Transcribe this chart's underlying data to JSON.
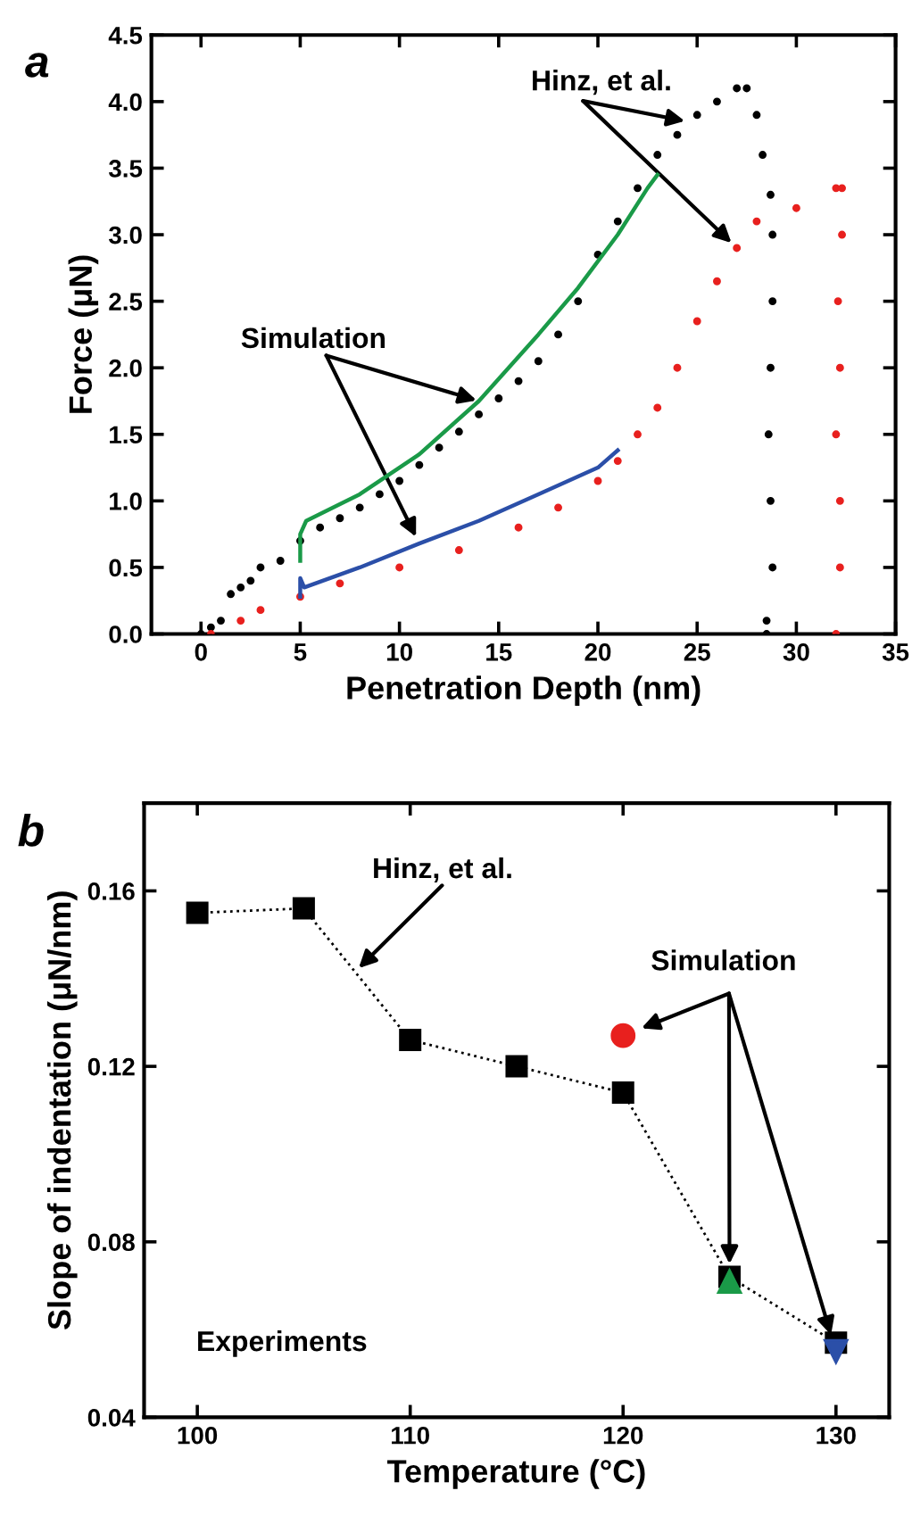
{
  "chart_data": [
    {
      "type": "line",
      "title": "a",
      "xlabel": "Penetration Depth (nm)",
      "ylabel": "Force (μN)",
      "xlim": [
        -2.5,
        35
      ],
      "ylim": [
        0,
        4.5
      ],
      "xticks": [
        0,
        5,
        10,
        15,
        20,
        25,
        30,
        35
      ],
      "yticks": [
        {
          "value": 0,
          "label": "0.0"
        },
        {
          "value": 0.5,
          "label": "0.5"
        },
        {
          "value": 1,
          "label": "1.0"
        },
        {
          "value": 1.5,
          "label": "1.5"
        },
        {
          "value": 2,
          "label": "2.0"
        },
        {
          "value": 2.5,
          "label": "2.5"
        },
        {
          "value": 3,
          "label": "3.0"
        },
        {
          "value": 3.5,
          "label": "3.5"
        },
        {
          "value": 4,
          "label": "4.0"
        },
        {
          "value": 4.5,
          "label": "4.5"
        }
      ],
      "series": [
        {
          "type": "scatter",
          "color": "#000000",
          "marker": "circle",
          "x": [
            0,
            0.5,
            1,
            1.5,
            2,
            2.5,
            3,
            4,
            5,
            6,
            7,
            8,
            9,
            10,
            11,
            12,
            13,
            14,
            15,
            16,
            17,
            18,
            19,
            20,
            21,
            22,
            23,
            24,
            25,
            26,
            27,
            27.5,
            28,
            28.3,
            28.7,
            28.8,
            28.8,
            28.7,
            28.6,
            28.7,
            28.8,
            28.5,
            28.5
          ],
          "values": [
            0,
            0.05,
            0.1,
            0.3,
            0.35,
            0.4,
            0.5,
            0.55,
            0.7,
            0.8,
            0.87,
            0.95,
            1.05,
            1.15,
            1.27,
            1.4,
            1.52,
            1.65,
            1.77,
            1.9,
            2.05,
            2.25,
            2.5,
            2.85,
            3.1,
            3.35,
            3.6,
            3.75,
            3.9,
            4.0,
            4.1,
            4.1,
            3.9,
            3.6,
            3.3,
            3.0,
            2.5,
            2.0,
            1.5,
            1.0,
            0.5,
            0.1,
            0
          ]
        },
        {
          "type": "scatter",
          "color": "#e8201e",
          "marker": "circle",
          "x": [
            0.5,
            2,
            3,
            5,
            7,
            10,
            13,
            16,
            18,
            20,
            21,
            22,
            23,
            24,
            25,
            26,
            27,
            28,
            30,
            32,
            32.3,
            32.3,
            32.1,
            32.2,
            32,
            32.2,
            32.2,
            32
          ],
          "values": [
            0,
            0.1,
            0.18,
            0.28,
            0.38,
            0.5,
            0.63,
            0.8,
            0.95,
            1.15,
            1.3,
            1.5,
            1.7,
            2.0,
            2.35,
            2.65,
            2.9,
            3.1,
            3.2,
            3.35,
            3.35,
            3.0,
            2.5,
            2.0,
            1.5,
            1.0,
            0.5,
            0
          ]
        },
        {
          "color": "#1a9a48",
          "line_style": "solid",
          "x": [
            5,
            5,
            5.3,
            8,
            11,
            14,
            17,
            19,
            21,
            22.5,
            23
          ],
          "values": [
            0.55,
            0.75,
            0.85,
            1.05,
            1.35,
            1.75,
            2.25,
            2.6,
            3.0,
            3.35,
            3.45
          ]
        },
        {
          "color": "#2b4fa8",
          "line_style": "solid",
          "x": [
            5,
            5,
            5.2,
            8,
            11,
            14,
            17,
            20,
            21
          ],
          "values": [
            0.28,
            0.42,
            0.35,
            0.5,
            0.68,
            0.85,
            1.05,
            1.25,
            1.38
          ]
        }
      ],
      "annotations": [
        {
          "text": "Hinz, et al.",
          "x": 24.5,
          "y": 3.85
        },
        {
          "text": "Simulation",
          "x": 14,
          "y": 1.75
        }
      ]
    },
    {
      "type": "line",
      "title": "b",
      "xlabel": "Temperature (°C)",
      "ylabel": "Slope of indentation (μN/nm)",
      "xlim": [
        97.5,
        132.5
      ],
      "ylim": [
        0.04,
        0.18
      ],
      "xticks": [
        100,
        110,
        120,
        130
      ],
      "yticks": [
        0.04,
        0.08,
        0.12,
        0.16
      ],
      "series": [
        {
          "color": "#000000",
          "marker": "square",
          "line_style": "dotted",
          "x": [
            100,
            105,
            110,
            115,
            120,
            125,
            130
          ],
          "values": [
            0.155,
            0.156,
            0.126,
            0.12,
            0.114,
            0.072,
            0.057
          ]
        },
        {
          "type": "scatter",
          "color": "#e8201e",
          "marker": "circle",
          "x": [
            120
          ],
          "values": [
            0.127
          ]
        },
        {
          "type": "scatter",
          "color": "#1a9a48",
          "marker": "triangle",
          "x": [
            125
          ],
          "values": [
            0.071
          ]
        },
        {
          "type": "scatter",
          "color": "#2b4fa8",
          "marker": "triangle_down",
          "x": [
            130
          ],
          "values": [
            0.055
          ]
        }
      ],
      "annotations": [
        {
          "text": "Hinz, et al.",
          "x": 107.5,
          "y": 0.142
        },
        {
          "text": "Simulation",
          "x": 120,
          "y": 0.127
        },
        "Experiments"
      ]
    }
  ]
}
